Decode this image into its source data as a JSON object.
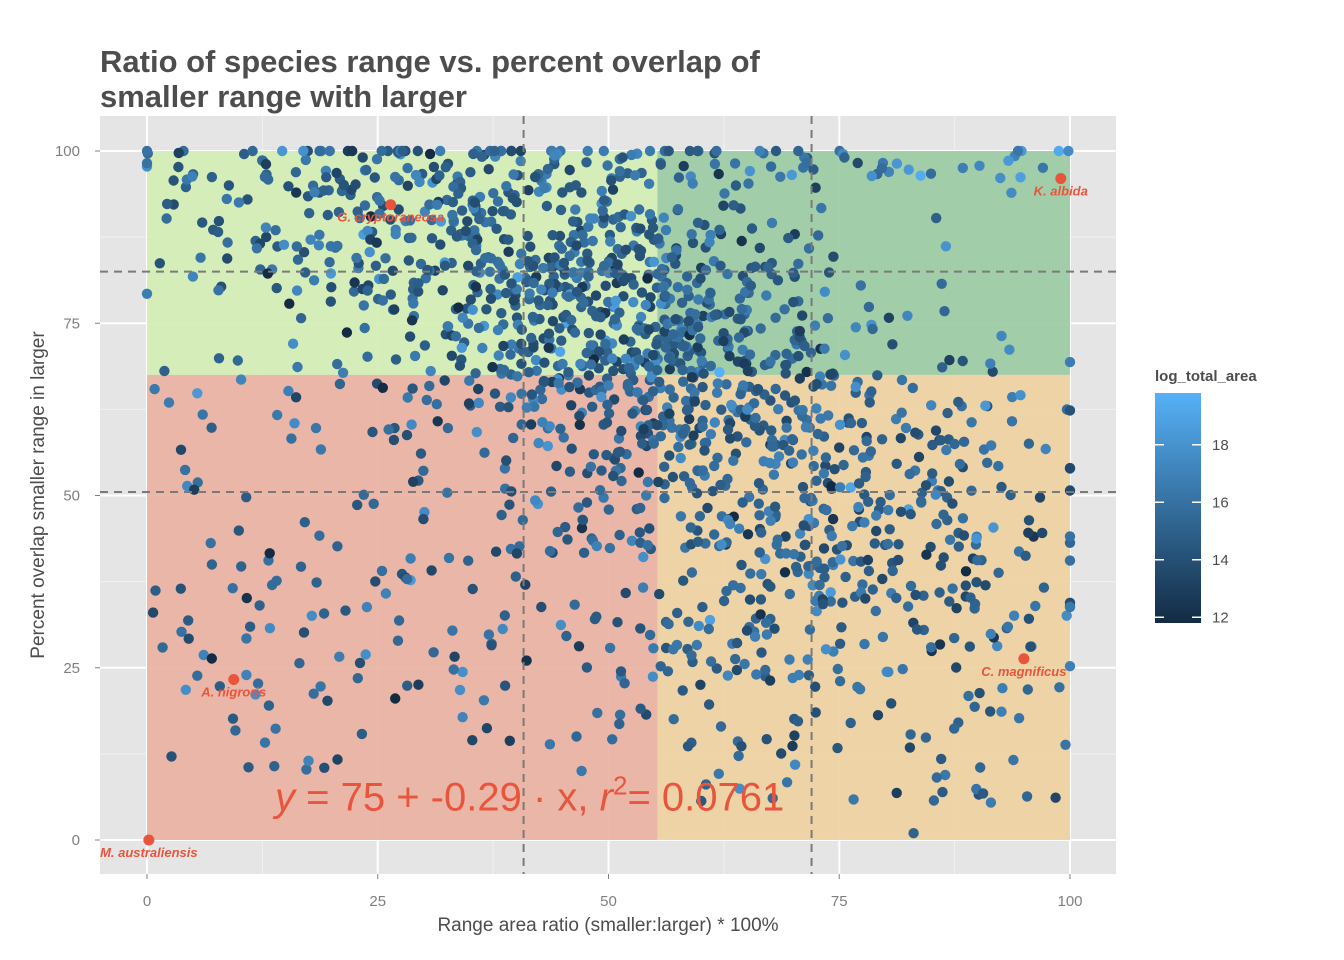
{
  "chart_data": {
    "type": "scatter",
    "title_lines": [
      "Ratio of species range vs. percent overlap of",
      "smaller range with larger"
    ],
    "xlabel": "Range area ratio (smaller:larger) * 100%",
    "ylabel": "Percent overlap smaller range in larger",
    "xlim": [
      -5,
      105
    ],
    "ylim": [
      -5,
      105
    ],
    "x_ticks": [
      "0",
      "25",
      "50",
      "75",
      "100"
    ],
    "y_ticks": [
      "0",
      "25",
      "50",
      "75",
      "100"
    ],
    "grid": true,
    "legend": {
      "title": "log_total_area",
      "placement": "right",
      "ticks": [
        "12",
        "14",
        "16",
        "18"
      ],
      "range": [
        11.8,
        19.8
      ],
      "colors": [
        "#132b43",
        "#56b1f7"
      ]
    },
    "quadrants": {
      "x_split": 55.3,
      "y_split": 67.5,
      "colors": {
        "top_left": "#d4eeb4",
        "top_right": "#9ccba4",
        "bottom_left": "#e9b2a3",
        "bottom_right": "#eed1a1"
      }
    },
    "reference_lines": {
      "vertical": [
        40.8,
        72
      ],
      "horizontal": [
        50.5,
        82.5
      ]
    },
    "equation": {
      "lhs": "y",
      "rhs": "75 + -0.29 · x,",
      "r2_label": "r",
      "r2_exp": "2",
      "r2_value": "= 0.0761",
      "x": 50,
      "y": 5
    },
    "highlighted_points": [
      {
        "label": "M. australiensis",
        "x": 0.2,
        "y": 0
      },
      {
        "label": "A. nigroris",
        "x": 9.4,
        "y": 23.3
      },
      {
        "label": "G. cryptoraneosa",
        "x": 26.4,
        "y": 92.2
      },
      {
        "label": "K. albida",
        "x": 99,
        "y": 96
      },
      {
        "label": "C. magnificus",
        "x": 95,
        "y": 26.3
      }
    ],
    "series": {
      "name": "",
      "point_count": 1800,
      "note_on_points": "cloud of points, x in [0,100], y in [0,100], colored by log_total_area"
    }
  }
}
